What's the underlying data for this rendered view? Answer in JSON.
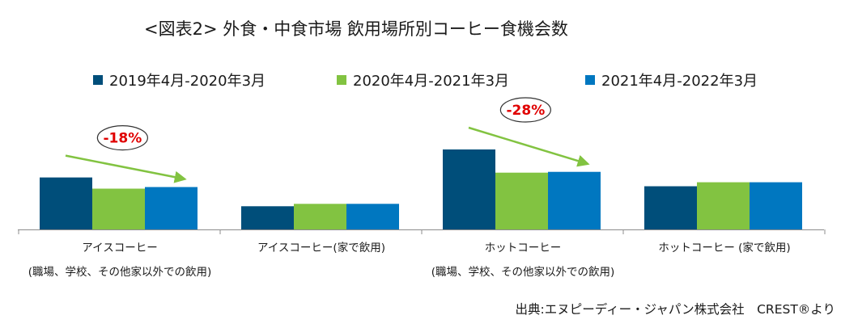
{
  "title": "<図表2> 外食・中食市場 飲用場所別コーヒー食機会数",
  "colors": {
    "s1": "#004e7a",
    "s2": "#82c341",
    "s3": "#0077c0",
    "arrow": "#82c341",
    "pct": "#e00000"
  },
  "chart_data": {
    "type": "bar",
    "title": "<図表2> 外食・中食市場 飲用場所別コーヒー食機会数",
    "categories": [
      [
        "アイスコーヒー",
        "(職場、学校、その他家以外での飲用)"
      ],
      [
        "アイスコーヒー(家で飲用)"
      ],
      [
        "ホットコーヒー",
        "(職場、学校、その他家以外での飲用)"
      ],
      [
        "ホットコーヒー (家で飲用)"
      ]
    ],
    "series": [
      {
        "name": "2019年4月-2020年3月",
        "values": [
          65,
          29,
          100,
          54
        ]
      },
      {
        "name": "2020年4月-2021年3月",
        "values": [
          51,
          32,
          71,
          59
        ]
      },
      {
        "name": "2021年4月-2022年3月",
        "values": [
          53,
          32,
          72,
          59
        ]
      }
    ],
    "ylim": [
      0,
      100
    ],
    "annotations": [
      {
        "category_index": 0,
        "text": "-18%"
      },
      {
        "category_index": 2,
        "text": "-28%"
      }
    ],
    "legend": "top",
    "grid": false
  },
  "source": "出典:エヌピーディー・ジャパン株式会社　CREST®より"
}
